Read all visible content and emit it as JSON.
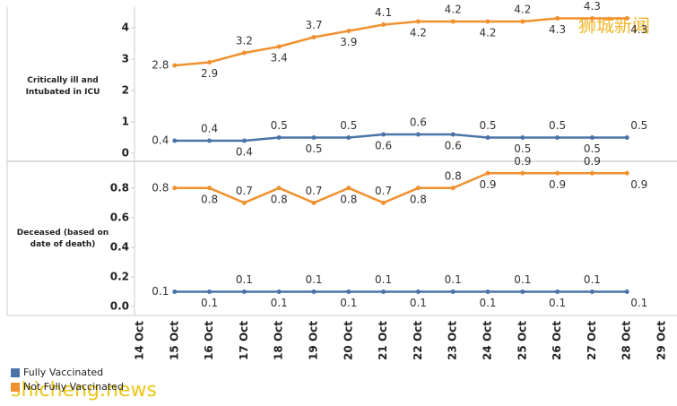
{
  "chart_data": [
    {
      "type": "line",
      "title": "Critically ill and Intubated in ICU",
      "series": [
        {
          "name": "Fully Vaccinated",
          "color": "#4a73a8",
          "values": [
            null,
            0.4,
            0.4,
            0.4,
            0.5,
            0.5,
            0.5,
            0.6,
            0.6,
            0.6,
            0.5,
            0.5,
            0.5,
            0.5,
            0.5,
            null
          ]
        },
        {
          "name": "Not Fully Vaccinated",
          "color": "#f0912f",
          "values": [
            null,
            2.8,
            2.9,
            3.2,
            3.4,
            3.7,
            3.9,
            4.1,
            4.2,
            4.2,
            4.2,
            4.2,
            4.3,
            4.3,
            4.3,
            null
          ]
        }
      ],
      "ylim": [
        0,
        4.5
      ],
      "yticks": [
        0,
        1,
        2,
        3,
        4
      ]
    },
    {
      "type": "line",
      "title": "Deceased (based on date of death)",
      "categories": [
        "14 Oct",
        "15 Oct",
        "16 Oct",
        "17 Oct",
        "18 Oct",
        "19 Oct",
        "20 Oct",
        "21 Oct",
        "22 Oct",
        "23 Oct",
        "24 Oct",
        "25 Oct",
        "26 Oct",
        "27 Oct",
        "28 Oct",
        "29 Oct"
      ],
      "series": [
        {
          "color": "#4a73a8",
          "values": [
            null,
            0.1,
            0.1,
            0.1,
            0.1,
            0.1,
            0.1,
            0.1,
            0.1,
            0.1,
            0.1,
            0.1,
            0.1,
            0.1,
            0.1,
            null
          ]
        },
        {
          "color": "#f0912f",
          "values": [
            null,
            0.8,
            0.8,
            0.7,
            0.8,
            0.7,
            0.8,
            0.7,
            0.8,
            0.8,
            0.9,
            0.9,
            0.9,
            0.9,
            0.9,
            null
          ]
        }
      ],
      "ylim": [
        0,
        0.95
      ],
      "yticks": [
        {
          "value": 0,
          "label": "0.0"
        },
        0.2,
        0.4,
        0.6,
        0.8
      ]
    }
  ],
  "watermark": [
    "狮城新闻",
    "shicheng.news"
  ]
}
